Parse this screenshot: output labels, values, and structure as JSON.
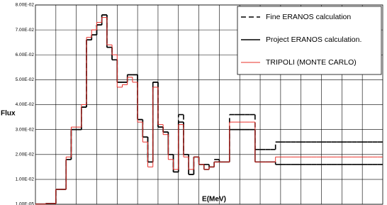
{
  "chart_data": {
    "type": "step",
    "x_label": "E(MeV)",
    "y_label": "Flux",
    "categories": [
      null,
      null,
      null,
      null,
      null,
      null,
      null,
      null,
      null,
      null,
      null,
      null,
      null,
      null,
      null,
      null,
      null,
      null,
      null,
      null,
      null,
      null,
      null,
      null,
      null,
      null,
      null,
      null,
      null,
      null,
      null,
      null,
      null,
      null,
      null,
      null,
      null,
      null,
      null,
      null,
      null,
      null,
      null,
      null,
      null,
      null,
      null,
      null,
      null,
      null,
      null,
      null,
      null,
      null,
      null,
      null,
      null,
      null,
      null,
      null,
      null,
      null,
      null,
      null,
      null,
      null,
      null,
      null
    ],
    "ylim": [
      1e-05,
      0.08
    ],
    "yticks": [
      {
        "value": 1e-05,
        "label": "1.00E-05"
      },
      {
        "value": 0.01,
        "label": "1.00E-02"
      },
      {
        "value": 0.02,
        "label": "2.00E-02"
      },
      {
        "value": 0.03,
        "label": "3.00E-02"
      },
      {
        "value": 0.04,
        "label": "4.00E-02"
      },
      {
        "value": 0.05,
        "label": "5.00E-02"
      },
      {
        "value": 0.06,
        "label": "6.00E-02"
      },
      {
        "value": 0.07,
        "label": "7.00E-02"
      },
      {
        "value": 0.08,
        "label": "8.00E-02"
      }
    ],
    "grid": true,
    "legend_position": "upper right",
    "series": [
      {
        "name": "Fine ERANOS calculation",
        "color": "#000000",
        "line_style": "dashed",
        "line_width": 1.6,
        "values": [
          0.0001,
          0.0001,
          0.0003,
          0.0003,
          0.006,
          0.006,
          0.018,
          0.03,
          0.03,
          0.039,
          0.066,
          0.068,
          0.072,
          0.076,
          0.063,
          0.058,
          0.049,
          0.049,
          0.052,
          0.052,
          0.034,
          0.027,
          0.017,
          0.049,
          0.031,
          0.029,
          0.02,
          0.013,
          0.036,
          0.02,
          0.012,
          0.019,
          0.016,
          0.016,
          0.015,
          0.018,
          0.017,
          0.017,
          0.036,
          0.036,
          0.036,
          0.036,
          0.036,
          0.022,
          0.022,
          0.022,
          0.022,
          0.025,
          0.025,
          0.025,
          0.025,
          0.025,
          0.025,
          0.025,
          0.025,
          0.025,
          0.025,
          0.025,
          0.025,
          0.025,
          0.025,
          0.025,
          0.025,
          0.025,
          0.025,
          0.025,
          0.025,
          0.025
        ]
      },
      {
        "name": "Project ERANOS calculation.",
        "color": "#000000",
        "line_style": "solid",
        "line_width": 1.6,
        "values": [
          0.0001,
          0.0001,
          0.0003,
          0.0003,
          0.006,
          0.006,
          0.018,
          0.03,
          0.03,
          0.039,
          0.066,
          0.068,
          0.072,
          0.076,
          0.063,
          0.058,
          0.049,
          0.049,
          0.052,
          0.052,
          0.034,
          0.027,
          0.017,
          0.049,
          0.031,
          0.029,
          0.02,
          0.013,
          0.033,
          0.02,
          0.012,
          0.019,
          0.016,
          0.014,
          0.015,
          0.017,
          0.017,
          0.017,
          0.03,
          0.03,
          0.03,
          0.03,
          0.03,
          0.017,
          0.017,
          0.017,
          0.017,
          0.016,
          0.016,
          0.016,
          0.016,
          0.016,
          0.016,
          0.016,
          0.016,
          0.016,
          0.016,
          0.016,
          0.016,
          0.016,
          0.016,
          0.016,
          0.016,
          0.016,
          0.016,
          0.016,
          0.016,
          0.016
        ]
      },
      {
        "name": "TRIPOLI (MONTE CARLO)",
        "color": "#e8302a",
        "line_style": "solid",
        "line_width": 1,
        "values": [
          0.0001,
          0.0001,
          0.0003,
          0.0003,
          0.006,
          0.006,
          0.019,
          0.031,
          0.031,
          0.04,
          0.067,
          0.07,
          0.073,
          0.075,
          0.064,
          0.06,
          0.047,
          0.048,
          0.051,
          0.049,
          0.033,
          0.025,
          0.015,
          0.047,
          0.032,
          0.028,
          0.018,
          0.014,
          0.032,
          0.019,
          0.014,
          0.019,
          0.016,
          0.014,
          0.015,
          0.017,
          0.017,
          0.017,
          0.033,
          0.033,
          0.033,
          0.033,
          0.033,
          0.017,
          0.017,
          0.017,
          0.017,
          0.019,
          0.019,
          0.019,
          0.019,
          0.019,
          0.019,
          0.019,
          0.019,
          0.019,
          0.019,
          0.019,
          0.019,
          0.019,
          0.019,
          0.019,
          0.019,
          0.019,
          0.019,
          0.019,
          0.019,
          0.019
        ]
      }
    ]
  }
}
